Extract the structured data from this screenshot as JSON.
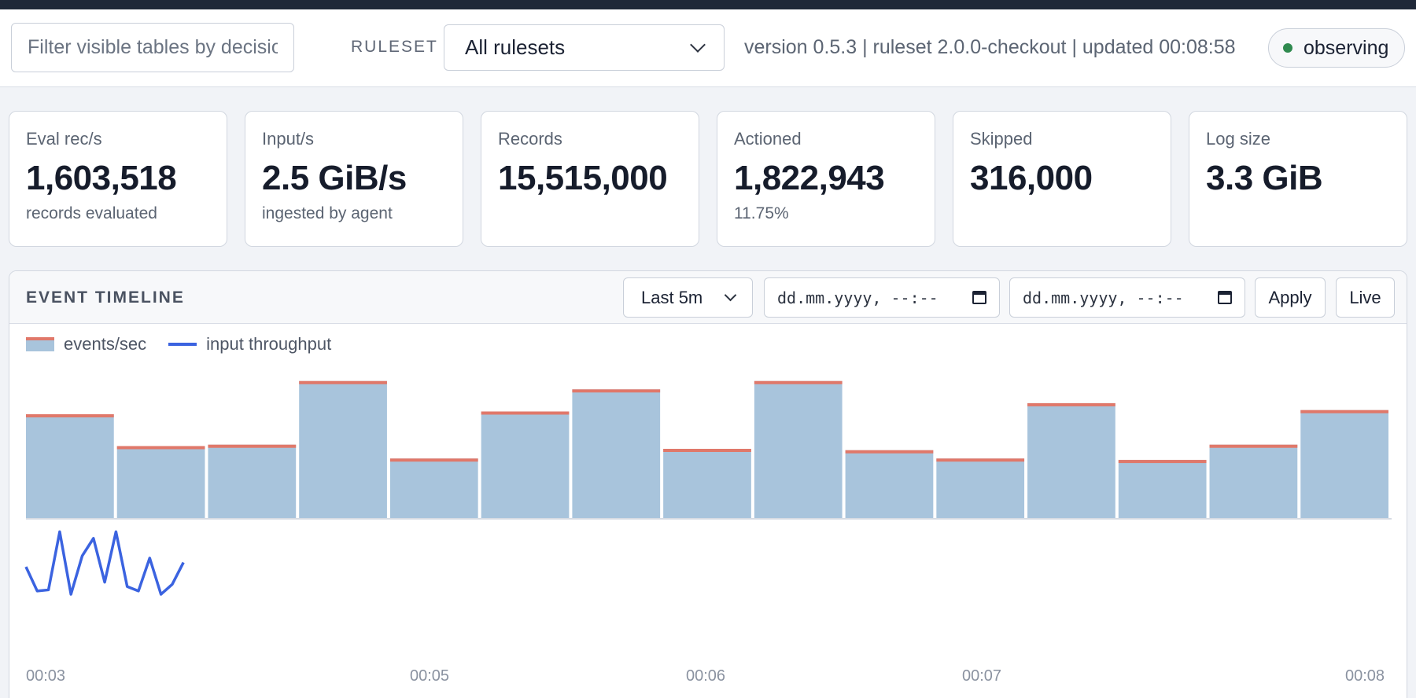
{
  "toolbar": {
    "filter_placeholder": "Filter visible tables by decision",
    "ruleset_label": "RULESET",
    "ruleset_selected": "All rulesets",
    "version_text": "version 0.5.3 | ruleset 2.0.0-checkout | updated 00:08:58",
    "status": "observing",
    "status_color": "#2f8a4f"
  },
  "cards": [
    {
      "label": "Eval rec/s",
      "value": "1,603,518",
      "sub": "records evaluated"
    },
    {
      "label": "Input/s",
      "value": "2.5 GiB/s",
      "sub": "ingested by agent"
    },
    {
      "label": "Records",
      "value": "15,515,000",
      "sub": ""
    },
    {
      "label": "Actioned",
      "value": "1,822,943",
      "sub": "11.75%"
    },
    {
      "label": "Skipped",
      "value": "316,000",
      "sub": ""
    },
    {
      "label": "Log size",
      "value": "3.3 GiB",
      "sub": ""
    }
  ],
  "timeline": {
    "title": "EVENT TIMELINE",
    "range_selected": "Last 5m",
    "from_placeholder": "dd.mm.yyyy, --:--",
    "to_placeholder": "dd.mm.yyyy, --:--",
    "apply_label": "Apply",
    "live_label": "Live"
  },
  "chart_data": {
    "type": "bar",
    "series": [
      {
        "name": "events/sec",
        "values": [
          75,
          52,
          53,
          99,
          43,
          77,
          93,
          50,
          99,
          49,
          43,
          83,
          42,
          53,
          78
        ],
        "color": "#a8c4dc",
        "cap_color": "#e0786a"
      },
      {
        "name": "input throughput",
        "values": [
          30,
          8,
          9,
          62,
          5,
          40,
          56,
          16,
          62,
          12,
          8,
          38,
          5,
          14,
          34
        ],
        "color": "#3b63e0"
      }
    ],
    "x_ticks": [
      "00:03",
      "00:05",
      "00:06",
      "00:07",
      "00:08"
    ],
    "ylim": [
      0,
      100
    ],
    "grid": false,
    "legend": "top-left"
  }
}
